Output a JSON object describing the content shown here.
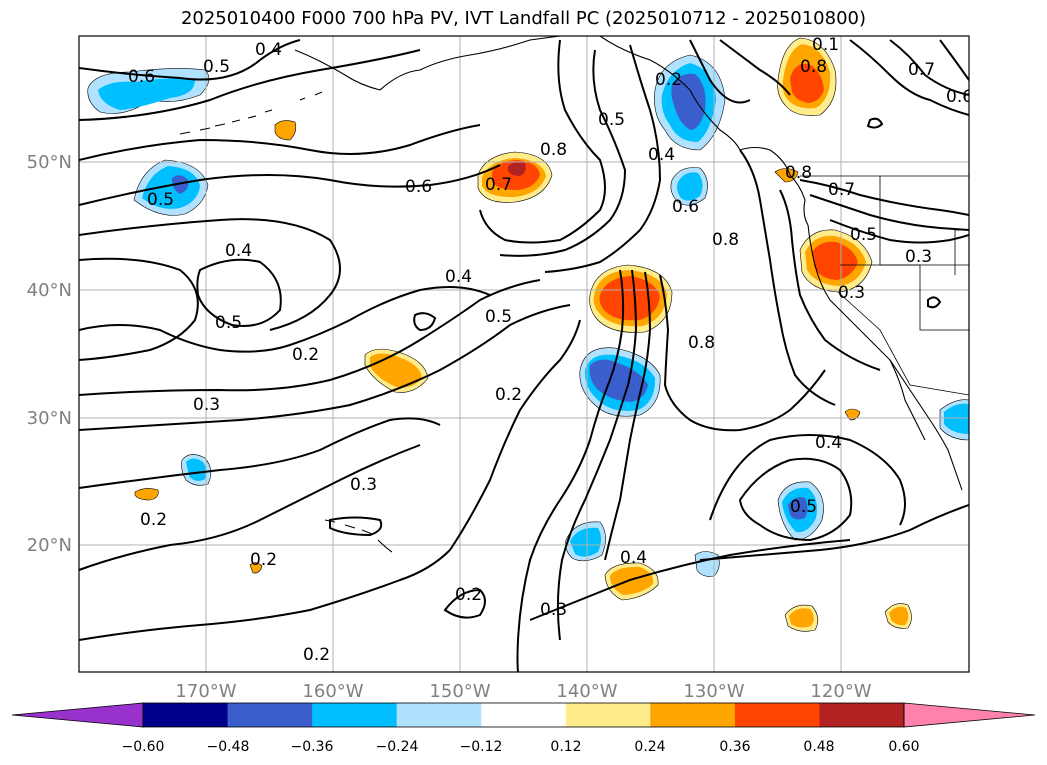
{
  "title": "2025010400 F000 700 hPa PV, IVT Landfall PC (2025010712 - 2025010800)",
  "latitude_labels": [
    "20°N",
    "30°N",
    "40°N",
    "50°N"
  ],
  "longitude_labels": [
    "170°W",
    "160°W",
    "150°W",
    "140°W",
    "130°W",
    "120°W"
  ],
  "colorbar": {
    "tick_labels": [
      "−0.60",
      "−0.48",
      "−0.36",
      "−0.24",
      "−0.12",
      "0.12",
      "0.24",
      "0.36",
      "0.48",
      "0.60"
    ],
    "colors": [
      "#9932cc",
      "#00008b",
      "#3a5fcd",
      "#00bfff",
      "#b0e2ff",
      "#ffffff",
      "#ffec8b",
      "#ffa500",
      "#ff4500",
      "#b22222",
      "#ff82ab"
    ]
  },
  "contour_labels": [
    "0.4",
    "0.6",
    "0.5",
    "0.7",
    "0.8",
    "0.5",
    "0.4",
    "0.6",
    "0.8",
    "0.5",
    "0.7",
    "0.6",
    "0.8",
    "0.1",
    "0.5",
    "0.3",
    "0.3",
    "0.6",
    "0.7",
    "0.8",
    "0.5",
    "0.4",
    "0.4",
    "0.5",
    "0.2",
    "0.4",
    "0.8",
    "0.2",
    "0.3",
    "0.3",
    "0.4",
    "0.5",
    "0.2",
    "0.2",
    "0.3",
    "0.2",
    "0.2",
    "0.2"
  ],
  "anomaly_colors": {
    "neg_light": "#b0e2ff",
    "neg_mid": "#00bfff",
    "neg_dark": "#3a5fcd",
    "neg_darkest": "#00008b",
    "pos_light": "#ffec8b",
    "pos_mid": "#ffa500",
    "pos_dark": "#ff4500",
    "pos_darkest": "#b22222"
  }
}
